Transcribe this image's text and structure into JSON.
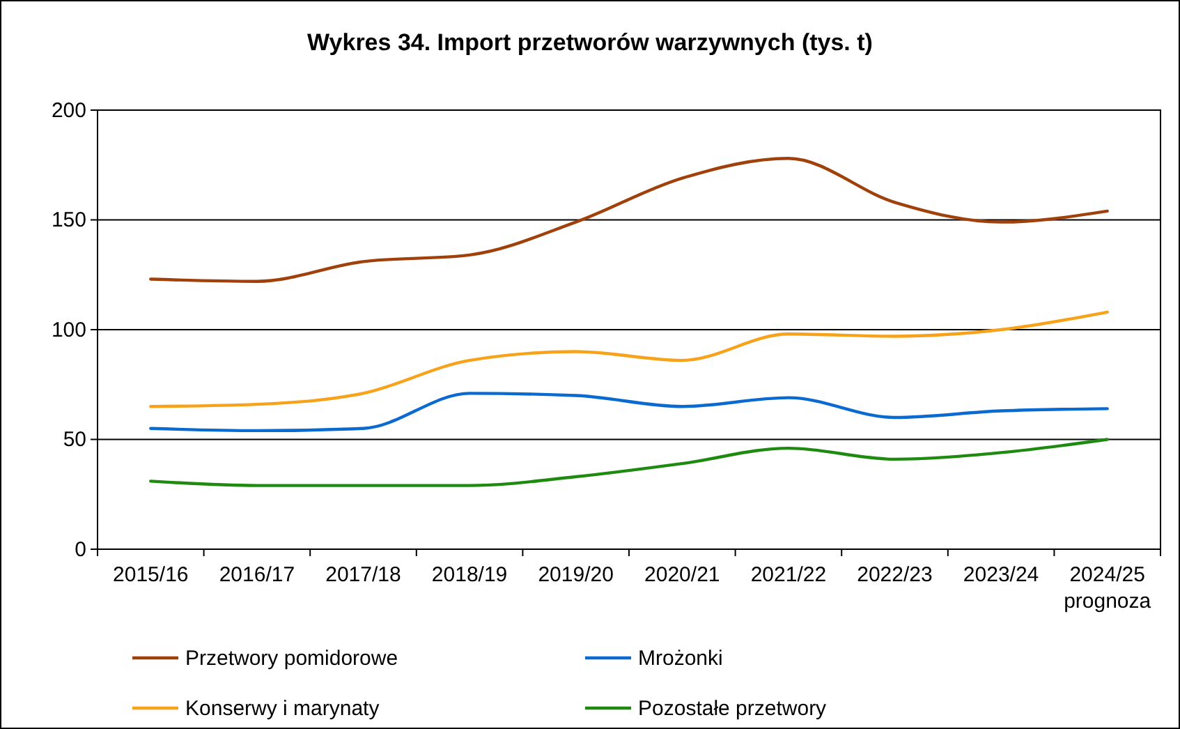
{
  "chart_data": {
    "type": "line",
    "title": "Wykres 34. Import przetworów warzywnych (tys. t)",
    "categories": [
      "2015/16",
      "2016/17",
      "2017/18",
      "2018/19",
      "2019/20",
      "2020/21",
      "2021/22",
      "2022/23",
      "2023/24",
      "2024/25\nprognoza"
    ],
    "series": [
      {
        "name": "Przetwory pomidorowe",
        "color": "#a0400a",
        "values": [
          123,
          122,
          131,
          134,
          149,
          169,
          178,
          158,
          149,
          154
        ]
      },
      {
        "name": "Mrożonki",
        "color": "#0a6ad0",
        "values": [
          55,
          54,
          55,
          71,
          70,
          65,
          69,
          60,
          63,
          64
        ]
      },
      {
        "name": "Konserwy i marynaty",
        "color": "#f7a21b",
        "values": [
          65,
          66,
          71,
          86,
          90,
          86,
          98,
          97,
          100,
          108
        ]
      },
      {
        "name": "Pozostałe przetwory",
        "color": "#1f8a10",
        "values": [
          31,
          29,
          29,
          29,
          33,
          39,
          46,
          41,
          44,
          50
        ]
      }
    ],
    "ylim": [
      0,
      200
    ],
    "yticks": [
      0,
      50,
      100,
      150,
      200
    ],
    "grid": "y",
    "legend": "bottom",
    "marker": "none",
    "line_style": "solid"
  }
}
